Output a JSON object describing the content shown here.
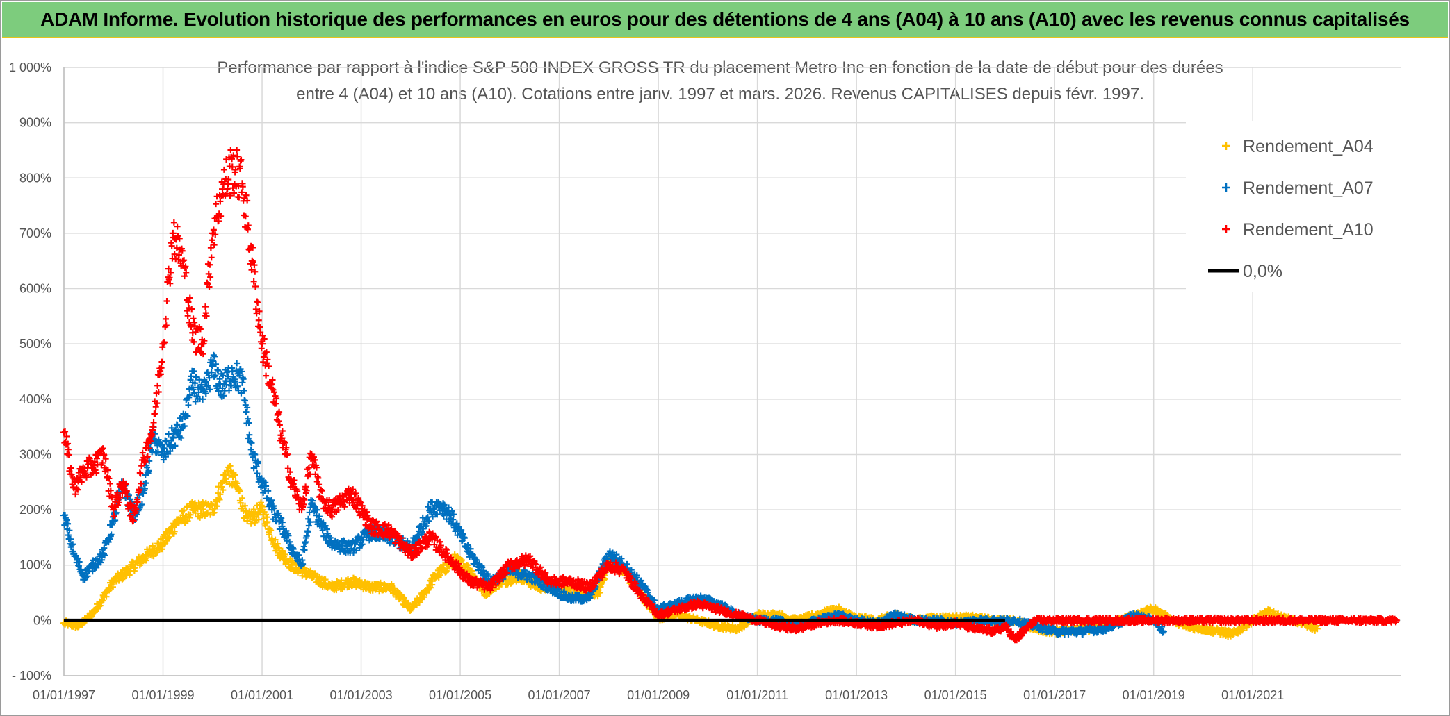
{
  "banner": {
    "title": "ADAM Informe. Evolution historique des performances en euros pour des détentions de 4 ans (A04) à 10 ans (A10) avec les revenus connus capitalisés"
  },
  "chart_data": {
    "type": "scatter",
    "title_line1": "Performance par rapport à l'indice S&P 500 INDEX GROSS TR  du placement Metro Inc en fonction de la date de début pour des durées",
    "title_line2": "entre 4 (A04) et 10 ans (A10). Cotations entre janv. 1997 et mars. 2026. Revenus CAPITALISES depuis févr. 1997.",
    "xlabel": "",
    "ylabel": "",
    "xlim": [
      1997.0,
      2024.0
    ],
    "ylim": [
      -100,
      1000
    ],
    "y_ticks": [
      -100,
      0,
      100,
      200,
      300,
      400,
      500,
      600,
      700,
      800,
      900,
      1000
    ],
    "y_tick_labels": [
      "- 100%",
      "0%",
      "100%",
      "200%",
      "300%",
      "400%",
      "500%",
      "600%",
      "700%",
      "800%",
      "900%",
      "1 000%"
    ],
    "x_ticks": [
      1997,
      1999,
      2001,
      2003,
      2005,
      2007,
      2009,
      2011,
      2013,
      2015,
      2017,
      2019,
      2021
    ],
    "x_tick_labels": [
      "01/01/1997",
      "01/01/1999",
      "01/01/2001",
      "01/01/2003",
      "01/01/2005",
      "01/01/2007",
      "01/01/2009",
      "01/01/2011",
      "01/01/2013",
      "01/01/2015",
      "01/01/2017",
      "01/01/2019",
      "01/01/2021"
    ],
    "grid": true,
    "legend_position": "top-right",
    "series": [
      {
        "name": "Rendement_A04",
        "color": "#FFC000",
        "marker": "plus",
        "x": [
          1997.0,
          1997.3,
          1997.6,
          1998.0,
          1998.3,
          1998.7,
          1999.0,
          1999.3,
          1999.6,
          2000.0,
          2000.3,
          2000.5,
          2000.7,
          2001.0,
          2001.3,
          2001.6,
          2002.0,
          2002.4,
          2002.8,
          2003.2,
          2003.6,
          2004.0,
          2004.2,
          2004.5,
          2004.9,
          2005.2,
          2005.5,
          2005.8,
          2006.2,
          2006.6,
          2007.0,
          2007.4,
          2007.8,
          2008.0,
          2008.3,
          2008.7,
          2009.0,
          2009.4,
          2009.8,
          2010.2,
          2010.6,
          2011.0,
          2011.4,
          2011.8,
          2012.2,
          2012.6,
          2013.0,
          2013.4,
          2013.8,
          2014.2,
          2014.6,
          2015.0,
          2015.4,
          2015.8,
          2016.2,
          2016.6,
          2017.0,
          2017.4,
          2017.8,
          2018.2,
          2018.6,
          2019.0,
          2019.3,
          2019.6,
          2020.0,
          2020.3,
          2020.6,
          2021.0,
          2021.3,
          2021.6,
          2022.0,
          2022.3
        ],
        "y": [
          -5,
          -10,
          15,
          70,
          90,
          120,
          140,
          180,
          200,
          200,
          270,
          240,
          180,
          200,
          130,
          100,
          80,
          60,
          70,
          60,
          60,
          20,
          40,
          80,
          110,
          90,
          50,
          70,
          80,
          60,
          60,
          50,
          50,
          110,
          90,
          40,
          5,
          10,
          0,
          -10,
          -15,
          10,
          10,
          0,
          10,
          20,
          5,
          0,
          10,
          0,
          5,
          5,
          5,
          0,
          0,
          -15,
          -20,
          -15,
          -15,
          -5,
          10,
          20,
          5,
          -10,
          -15,
          -20,
          -25,
          0,
          15,
          5,
          -5,
          -15
        ]
      },
      {
        "name": "Rendement_A07",
        "color": "#0070C0",
        "marker": "plus",
        "x": [
          1997.0,
          1997.2,
          1997.4,
          1997.6,
          1997.8,
          1998.0,
          1998.2,
          1998.4,
          1998.6,
          1998.8,
          1999.0,
          1999.2,
          1999.4,
          1999.6,
          1999.8,
          2000.0,
          2000.2,
          2000.4,
          2000.6,
          2000.8,
          2001.0,
          2001.2,
          2001.4,
          2001.6,
          2001.8,
          2002.0,
          2002.2,
          2002.4,
          2002.8,
          2003.2,
          2003.6,
          2004.0,
          2004.4,
          2004.6,
          2004.8,
          2005.2,
          2005.6,
          2006.0,
          2006.4,
          2006.8,
          2007.2,
          2007.6,
          2008.0,
          2008.3,
          2008.7,
          2009.0,
          2009.4,
          2009.8,
          2010.2,
          2010.6,
          2011.0,
          2011.4,
          2011.8,
          2012.2,
          2012.6,
          2013.0,
          2013.4,
          2013.8,
          2014.2,
          2014.6,
          2015.0,
          2015.4,
          2015.8,
          2016.2,
          2016.6,
          2017.0,
          2017.5,
          2018.0,
          2018.3,
          2018.6,
          2019.0,
          2019.2
        ],
        "y": [
          190,
          120,
          80,
          100,
          120,
          180,
          250,
          190,
          230,
          330,
          300,
          330,
          350,
          430,
          400,
          460,
          420,
          450,
          430,
          300,
          250,
          200,
          170,
          130,
          100,
          210,
          170,
          140,
          130,
          160,
          150,
          130,
          200,
          210,
          190,
          120,
          70,
          90,
          80,
          60,
          40,
          40,
          120,
          100,
          60,
          20,
          30,
          40,
          30,
          10,
          0,
          0,
          -10,
          0,
          10,
          0,
          -5,
          10,
          0,
          0,
          -5,
          0,
          0,
          0,
          -10,
          -20,
          -20,
          -15,
          -5,
          10,
          0,
          -20
        ]
      },
      {
        "name": "Rendement_A10",
        "color": "#FF0000",
        "marker": "plus",
        "x": [
          1997.0,
          1997.2,
          1997.4,
          1997.6,
          1997.8,
          1998.0,
          1998.2,
          1998.4,
          1998.6,
          1998.8,
          1999.0,
          1999.2,
          1999.4,
          1999.6,
          1999.8,
          2000.0,
          2000.2,
          2000.4,
          2000.6,
          2000.8,
          2001.0,
          2001.2,
          2001.4,
          2001.6,
          2001.8,
          2002.0,
          2002.2,
          2002.4,
          2002.8,
          2003.2,
          2003.6,
          2004.0,
          2004.4,
          2004.8,
          2005.2,
          2005.6,
          2006.0,
          2006.4,
          2006.8,
          2007.2,
          2007.6,
          2008.0,
          2008.3,
          2008.7,
          2009.0,
          2009.4,
          2009.8,
          2010.2,
          2010.6,
          2011.0,
          2011.4,
          2011.8,
          2012.2,
          2012.6,
          2013.0,
          2013.4,
          2013.8,
          2014.2,
          2014.6,
          2015.0,
          2015.4,
          2015.8,
          2016.0,
          2016.2,
          2016.6,
          2017.2,
          2018.0,
          2019.0,
          2020.0,
          2021.0,
          2022.0,
          2023.0,
          2023.9
        ],
        "y": [
          340,
          240,
          270,
          280,
          300,
          200,
          250,
          180,
          290,
          350,
          500,
          700,
          650,
          520,
          500,
          700,
          780,
          820,
          790,
          650,
          500,
          420,
          330,
          250,
          200,
          300,
          220,
          200,
          230,
          170,
          160,
          120,
          150,
          110,
          70,
          60,
          100,
          110,
          70,
          70,
          60,
          100,
          90,
          40,
          10,
          20,
          30,
          20,
          10,
          0,
          -10,
          -15,
          -5,
          0,
          -5,
          -10,
          -5,
          0,
          -10,
          -5,
          -15,
          -20,
          -10,
          -35,
          0,
          0,
          0,
          0,
          0,
          0,
          0,
          0,
          0
        ]
      },
      {
        "name": "0,0%",
        "color": "#000000",
        "marker": "line",
        "x": [
          1997.0,
          2016.0
        ],
        "y": [
          0,
          0
        ]
      }
    ]
  }
}
